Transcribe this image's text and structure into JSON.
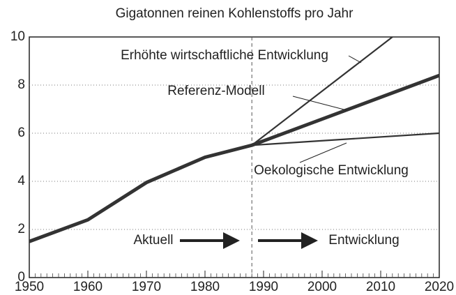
{
  "chart_data": {
    "type": "line",
    "title": "Gigatonnen reinen Kohlenstoffs pro Jahr",
    "series": [
      {
        "x": [
          1950,
          1960,
          1970,
          1980,
          1988
        ],
        "values": [
          1.5,
          2.4,
          3.95,
          5.0,
          5.5
        ],
        "color": "#333333"
      },
      {
        "name": "Erhöhte wirtschaftliche Entwicklung",
        "x": [
          1988,
          2012
        ],
        "values": [
          5.5,
          10
        ],
        "color": "#333333"
      },
      {
        "name": "Referenz-Modell",
        "x": [
          1988,
          2020
        ],
        "values": [
          5.5,
          8.4
        ],
        "color": "#333333"
      },
      {
        "name": "Oekologische Entwicklung",
        "x": [
          1988,
          2020
        ],
        "values": [
          5.5,
          6.0
        ],
        "color": "#333333"
      }
    ],
    "annotations": [
      "Aktuell",
      "Entwicklung"
    ],
    "divider_x": 1988,
    "xlim": [
      1950,
      2020
    ],
    "xticks": [
      1950,
      1960,
      1970,
      1980,
      1990,
      2000,
      2010,
      2020
    ],
    "ylim": [
      0,
      10
    ],
    "yticks": [
      0,
      2,
      4,
      6,
      8,
      10
    ],
    "grid": true
  }
}
